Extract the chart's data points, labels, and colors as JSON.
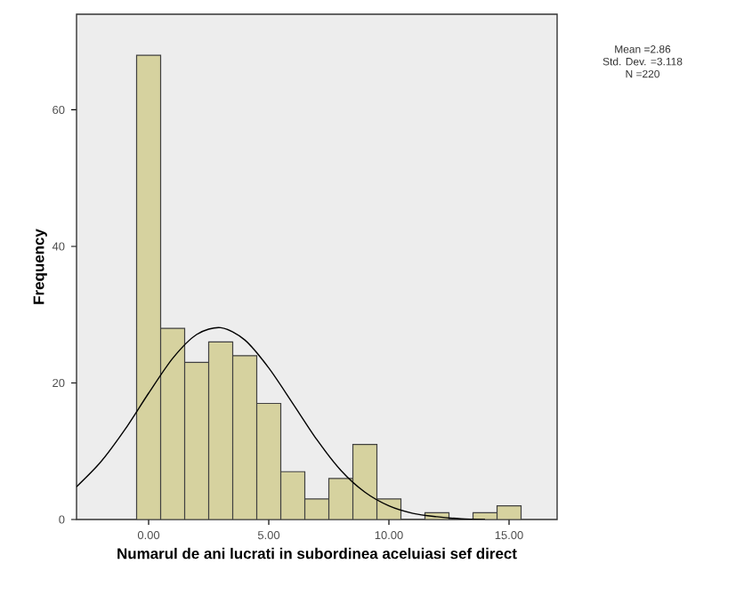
{
  "chart_data": {
    "type": "histogram",
    "xlabel": "Numarul de ani lucrati in subordinea aceluiasi sef direct",
    "ylabel": "Frequency",
    "bins": [
      -0.5,
      0.5,
      1.5,
      2.5,
      3.5,
      4.5,
      5.5,
      6.5,
      7.5,
      8.5,
      9.5,
      10.5,
      11.5,
      12.5,
      13.5,
      14.5,
      15.5
    ],
    "values": [
      68,
      28,
      23,
      26,
      24,
      17,
      7,
      3,
      6,
      11,
      3,
      0,
      1,
      0,
      1,
      2
    ],
    "color": "#d6d29f",
    "series": [
      {
        "type": "line",
        "color": "#000000",
        "x": [
          -3,
          -2,
          -1,
          0,
          1,
          2,
          3,
          4,
          5,
          6,
          7,
          8,
          9,
          10,
          11,
          12,
          13,
          14
        ],
        "values": [
          4.8,
          8.4,
          13.1,
          18.5,
          23.6,
          27.1,
          28.1,
          26.3,
          22.2,
          17.0,
          11.7,
          7.2,
          4.0,
          2.0,
          0.9,
          0.4,
          0.1,
          0.0
        ]
      }
    ],
    "xlim": [
      -3,
      17
    ],
    "ylim": [
      0,
      74
    ],
    "xticks": [
      {
        "value": 0,
        "label": "0.00"
      },
      {
        "value": 5,
        "label": "5.00"
      },
      {
        "value": 10,
        "label": "10.00"
      },
      {
        "value": 15,
        "label": "15.00"
      }
    ],
    "yticks": [
      0,
      20,
      40,
      60
    ],
    "grid": false,
    "annotations": [
      "Mean =2.86",
      "Std. Dev. =3.118",
      "N =220"
    ]
  }
}
